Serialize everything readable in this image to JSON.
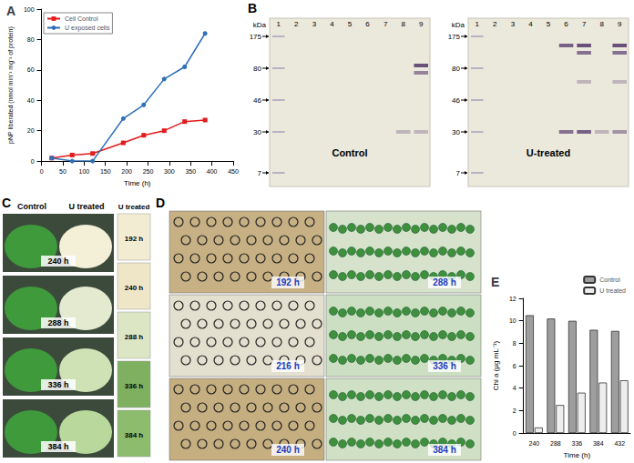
{
  "chart_data": [
    {
      "type": "line",
      "title": "A",
      "x_label": "Time (h)",
      "y_label": "pNP liberated (nmol min⁻¹ mg⁻¹ of protein)",
      "x": [
        24,
        72,
        120,
        192,
        240,
        288,
        336,
        384
      ],
      "series": [
        {
          "name": "Cell Control",
          "color": "#e41a1c",
          "marker": "square",
          "values": [
            2,
            4,
            5,
            12,
            17,
            20,
            26,
            27
          ]
        },
        {
          "name": "U exposed cells",
          "color": "#2f6fb7",
          "marker": "circle",
          "values": [
            2,
            0,
            0,
            28,
            37,
            54,
            62,
            84
          ]
        }
      ],
      "xlim": [
        0,
        450
      ],
      "xticks": [
        0,
        50,
        100,
        150,
        200,
        250,
        300,
        350,
        400,
        450
      ],
      "ylim": [
        0,
        100
      ],
      "yticks": [
        0,
        20,
        40,
        60,
        80,
        100
      ],
      "legend": "upper left",
      "grid": false
    },
    {
      "type": "bar",
      "title": "E",
      "x_label": "Time (h)",
      "y_label": "Chl a (µg mL⁻¹)",
      "categories": [
        "240",
        "288",
        "336",
        "384",
        "432"
      ],
      "series": [
        {
          "name": "Control",
          "color": "#9e9e9e",
          "values": [
            10.5,
            10.2,
            10.0,
            9.2,
            9.1
          ]
        },
        {
          "name": "U treated",
          "color": "#eeeeee",
          "values": [
            0.5,
            2.5,
            3.6,
            4.5,
            4.7
          ]
        }
      ],
      "ylim": [
        0,
        12
      ],
      "yticks": [
        0,
        2,
        4,
        6,
        8,
        10,
        12
      ],
      "legend": "upper right",
      "grid": false
    }
  ],
  "panels": {
    "B": {
      "label": "B",
      "unit": "kDa",
      "lanes": [
        "1",
        "2",
        "3",
        "4",
        "5",
        "6",
        "7",
        "8",
        "9"
      ],
      "markers": [
        175,
        80,
        46,
        30,
        7
      ],
      "gels": [
        "Control",
        "U-treated"
      ]
    },
    "C": {
      "label": "C",
      "columns": [
        "Control",
        "U treated"
      ],
      "times": [
        "240 h",
        "288 h",
        "336 h",
        "384 h"
      ],
      "side_title": "U treated",
      "side_times": [
        "192 h",
        "240 h",
        "288 h",
        "336 h",
        "384 h"
      ]
    },
    "D": {
      "label": "D",
      "times": [
        "192 h",
        "288 h",
        "216 h",
        "336 h",
        "240 h",
        "384 h"
      ]
    }
  }
}
